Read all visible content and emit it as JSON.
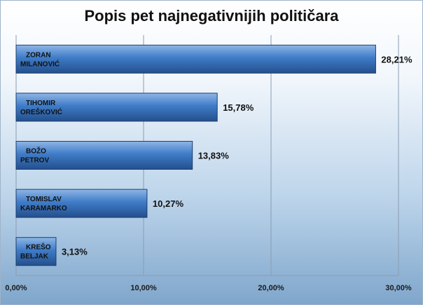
{
  "chart_data": {
    "type": "bar",
    "orientation": "horizontal",
    "title": "Popis pet najnegativnijih političara",
    "categories": [
      [
        "ZORAN",
        "MILANOVIĆ"
      ],
      [
        "TIHOMIR",
        "OREŠKOVIĆ"
      ],
      [
        "BOŽO",
        "PETROV"
      ],
      [
        "TOMISLAV",
        "KARAMARKO"
      ],
      [
        "KREŠO",
        "BELJAK"
      ]
    ],
    "values": [
      28.21,
      15.78,
      13.83,
      10.27,
      3.13
    ],
    "value_labels": [
      "28,21%",
      "15,78%",
      "13,83%",
      "10,27%",
      "3,13%"
    ],
    "xlim": [
      0,
      30
    ],
    "xticks": [
      0,
      10,
      20,
      30
    ],
    "xtick_labels": [
      "0,00%",
      "10,00%",
      "20,00%",
      "30,00%"
    ],
    "grid": true,
    "bar_color": "#3a74c0"
  }
}
